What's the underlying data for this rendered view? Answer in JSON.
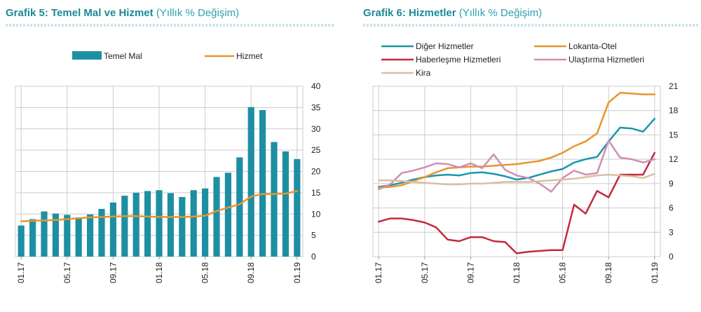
{
  "charts": [
    {
      "title_main": "Grafik 5: Temel Mal ve Hizmet",
      "title_sub": "(Yıllık % Değişim)"
    },
    {
      "title_main": "Grafik 6: Hizmetler",
      "title_sub": "(Yıllık % Değişim)"
    }
  ],
  "chart_data": [
    {
      "type": "bar",
      "categories": [
        "01.17",
        "02.17",
        "03.17",
        "04.17",
        "05.17",
        "06.17",
        "07.17",
        "08.17",
        "09.17",
        "10.17",
        "11.17",
        "12.17",
        "01.18",
        "02.18",
        "03.18",
        "04.18",
        "05.18",
        "06.18",
        "07.18",
        "08.18",
        "09.18",
        "10.18",
        "11.18",
        "12.18",
        "01.19"
      ],
      "x_tick_labels": [
        "01.17",
        "05.17",
        "09.17",
        "01.18",
        "05.18",
        "09.18",
        "01.19"
      ],
      "series": [
        {
          "name": "Temel Mal",
          "kind": "bar",
          "color": "#1e8fa3",
          "values": [
            7.3,
            8.8,
            10.6,
            10.1,
            9.8,
            9.2,
            9.9,
            11.2,
            12.7,
            14.3,
            15.0,
            15.4,
            15.6,
            14.9,
            14.0,
            15.6,
            16.0,
            18.7,
            19.7,
            23.3,
            35.1,
            34.4,
            26.9,
            24.7,
            22.9
          ]
        },
        {
          "name": "Hizmet",
          "kind": "line",
          "color": "#e8952c",
          "values": [
            8.3,
            8.4,
            8.5,
            8.6,
            8.8,
            9.0,
            9.2,
            9.3,
            9.4,
            9.5,
            9.5,
            9.4,
            9.3,
            9.3,
            9.3,
            9.4,
            9.6,
            10.7,
            11.5,
            12.3,
            14.1,
            14.7,
            14.7,
            14.8,
            15.4
          ]
        }
      ],
      "y_axis": {
        "side": "right",
        "min": 0,
        "max": 40,
        "ticks": [
          0,
          5,
          10,
          15,
          20,
          25,
          30,
          35,
          40
        ]
      },
      "grid": true,
      "legend_position": "top"
    },
    {
      "type": "line",
      "categories": [
        "01.17",
        "02.17",
        "03.17",
        "04.17",
        "05.17",
        "06.17",
        "07.17",
        "08.17",
        "09.17",
        "10.17",
        "11.17",
        "12.17",
        "01.18",
        "02.18",
        "03.18",
        "04.18",
        "05.18",
        "06.18",
        "07.18",
        "08.18",
        "09.18",
        "10.18",
        "11.18",
        "12.18",
        "01.19"
      ],
      "x_tick_labels": [
        "01.17",
        "05.17",
        "09.17",
        "01.18",
        "05.18",
        "09.18",
        "01.19"
      ],
      "series": [
        {
          "name": "Diğer Hizmetler",
          "color": "#1b96aa",
          "values": [
            8.6,
            8.8,
            9.1,
            9.5,
            9.8,
            10.0,
            10.1,
            10.0,
            10.3,
            10.4,
            10.2,
            9.9,
            9.5,
            9.7,
            10.1,
            10.5,
            10.8,
            11.6,
            12.0,
            12.3,
            14.2,
            15.9,
            15.8,
            15.4,
            17.0
          ]
        },
        {
          "name": "Lokanta-Otel",
          "color": "#e8952c",
          "values": [
            8.5,
            8.6,
            8.8,
            9.3,
            9.8,
            10.4,
            10.9,
            11.0,
            11.1,
            11.1,
            11.2,
            11.3,
            11.4,
            11.6,
            11.8,
            12.2,
            12.8,
            13.6,
            14.2,
            15.2,
            19.0,
            20.2,
            20.1,
            20.0,
            20.0
          ]
        },
        {
          "name": "Haberleşme Hizmetleri",
          "color": "#c42a3a",
          "values": [
            4.3,
            4.7,
            4.7,
            4.5,
            4.2,
            3.6,
            2.1,
            1.9,
            2.4,
            2.4,
            1.9,
            1.8,
            0.4,
            0.6,
            0.7,
            0.8,
            0.8,
            6.4,
            5.3,
            8.1,
            7.3,
            10.1,
            10.1,
            10.1,
            12.8
          ]
        },
        {
          "name": "Ulaştırma Hizmetleri",
          "color": "#cf8fb4",
          "values": [
            8.3,
            8.9,
            10.3,
            10.6,
            11.0,
            11.5,
            11.4,
            11.0,
            11.5,
            10.9,
            12.6,
            10.7,
            10.0,
            9.7,
            9.0,
            8.0,
            9.7,
            10.6,
            10.1,
            10.3,
            14.3,
            12.2,
            12.0,
            11.6,
            12.0
          ]
        },
        {
          "name": "Kira",
          "color": "#d8c0a0",
          "values": [
            9.4,
            9.4,
            9.3,
            9.2,
            9.1,
            9.0,
            8.9,
            8.9,
            9.0,
            9.0,
            9.1,
            9.2,
            9.2,
            9.2,
            9.3,
            9.4,
            9.5,
            9.6,
            9.8,
            10.0,
            10.1,
            10.0,
            9.9,
            9.7,
            10.2
          ]
        }
      ],
      "y_axis": {
        "side": "right",
        "min": 0,
        "max": 21,
        "ticks": [
          0,
          3,
          6,
          9,
          12,
          15,
          18,
          21
        ]
      },
      "grid": true,
      "legend_position": "top"
    }
  ]
}
